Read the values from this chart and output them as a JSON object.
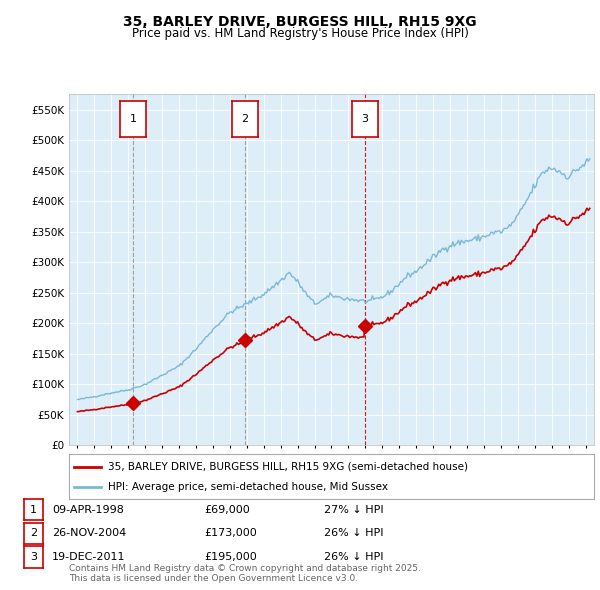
{
  "title": "35, BARLEY DRIVE, BURGESS HILL, RH15 9XG",
  "subtitle": "Price paid vs. HM Land Registry's House Price Index (HPI)",
  "legend_line1": "35, BARLEY DRIVE, BURGESS HILL, RH15 9XG (semi-detached house)",
  "legend_line2": "HPI: Average price, semi-detached house, Mid Sussex",
  "footer_line1": "Contains HM Land Registry data © Crown copyright and database right 2025.",
  "footer_line2": "This data is licensed under the Open Government Licence v3.0.",
  "transactions": [
    {
      "num": 1,
      "date": "09-APR-1998",
      "price": 69000,
      "pct": "27% ↓ HPI",
      "x": 1998.27,
      "vline_style": "dashed_gray"
    },
    {
      "num": 2,
      "date": "26-NOV-2004",
      "price": 173000,
      "pct": "26% ↓ HPI",
      "x": 2004.9,
      "vline_style": "dashed_gray"
    },
    {
      "num": 3,
      "date": "19-DEC-2011",
      "price": 195000,
      "pct": "26% ↓ HPI",
      "x": 2011.96,
      "vline_style": "dashed_red"
    }
  ],
  "transaction_color": "#cc0000",
  "hpi_color": "#7ab8d8",
  "chart_bg_color": "#ddeef8",
  "vline_gray_color": "#999999",
  "vline_red_color": "#cc0000",
  "ylim": [
    0,
    575000
  ],
  "yticks": [
    0,
    50000,
    100000,
    150000,
    200000,
    250000,
    300000,
    350000,
    400000,
    450000,
    500000,
    550000
  ],
  "ytick_labels": [
    "£0",
    "£50K",
    "£100K",
    "£150K",
    "£200K",
    "£250K",
    "£300K",
    "£350K",
    "£400K",
    "£450K",
    "£500K",
    "£550K"
  ],
  "xlim_start": 1994.5,
  "xlim_end": 2025.5,
  "background_color": "#ffffff",
  "grid_color": "#c8d8e8",
  "grid_color2": "#ffffff"
}
